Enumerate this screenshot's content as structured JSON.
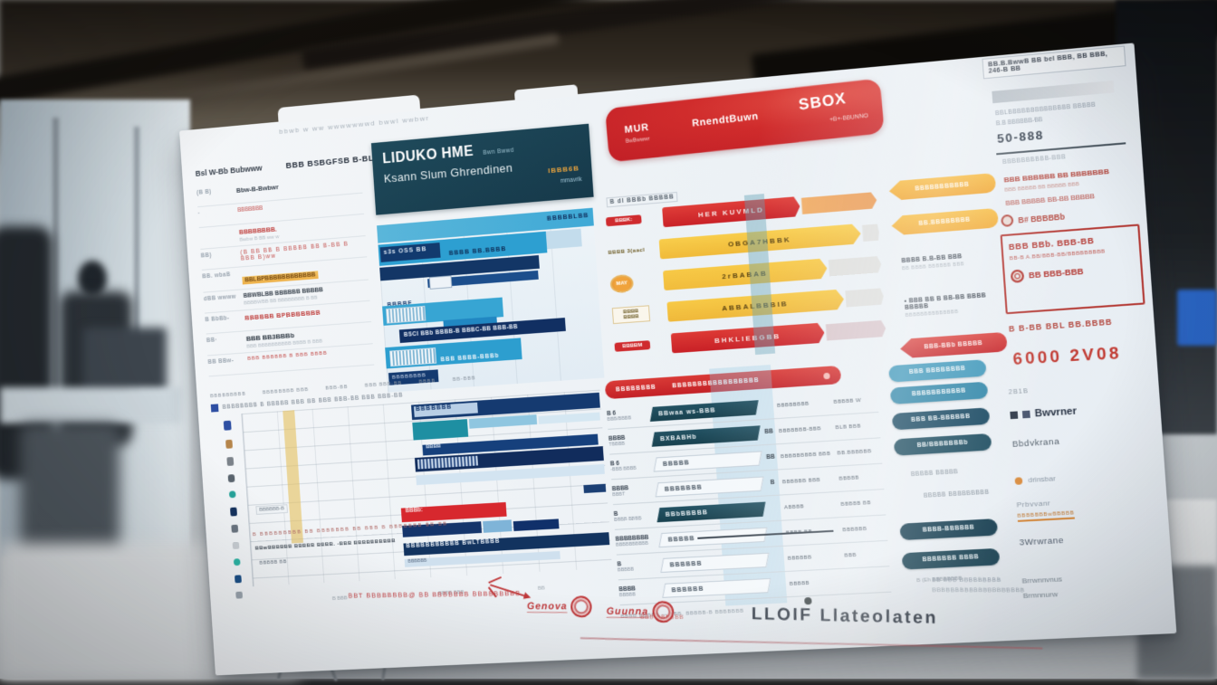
{
  "poster": {
    "top_note": "bbwb w ww wwwwwwwd bwwl wwbwr",
    "meta_left": "Bsl W-Bb  Bubwww",
    "meta_right": "BBB BSBGFSB B-BLMBM 4B-Br BBbGb",
    "header_box": {
      "title": "LIDUKO HME",
      "title_suffix": "Bwn Bwwd",
      "subtitle": "Ksann Slum Ghrendinen",
      "corner_tag": "IBBB6B",
      "corner_sub": "mmavrik",
      "bg_color": "#1c4152"
    },
    "banner": {
      "left_tag": "MUR",
      "left_sub": "BwBwwwr",
      "center": "RnendtBuwn",
      "right_big": "SBOX",
      "right_sub": "+B+-BBUNNO",
      "bg_color": "#cc2329"
    },
    "left_list": {
      "rows": [
        {
          "label": "(B B)",
          "text": "Bbw-B-Bwbwr",
          "sub": ""
        },
        {
          "label": "·",
          "text": "BBBBBBB",
          "sub": ""
        },
        {
          "label": "",
          "text": "BBBBBBBB.",
          "sub": "Bwbw B BB ww w"
        },
        {
          "label": "BB)",
          "text": "(B BB BB B BBBBB BB B-BB B BBB B)ww",
          "sub": ""
        },
        {
          "label": "BB. wbaB",
          "text": "BBLBPBBBBBBBBBBBB",
          "sub": ""
        },
        {
          "label": "dBB  wwww",
          "text": "BBWBLBB BBBBBB BBBBB",
          "sub": "BBBBWBB BB BBBBBBBB B BB"
        },
        {
          "label": "B BbBb-",
          "text": "BBBBBB BPBBBBBBB",
          "sub": ""
        },
        {
          "label": "BB·",
          "text": "BBB BB3BBBb",
          "sub": "BBB BBBBBBBBBB BBBB B BBB"
        },
        {
          "label": "BB BBw-",
          "text": "BBB BBBBBB B BBB BBBB",
          "sub": ""
        }
      ]
    },
    "blue_chart": {
      "bars": [
        {
          "n": "bar-top-strip",
          "s": "left:0;top:0;width:100%;height:20px;background:linear-gradient(90deg,#5ab6da,#3fa9d6);",
          "t": "BBBBBLBB",
          "ts": "position:absolute;right:5px;top:5px;font-size:7px;font-weight:bold;color:#10315f;letter-spacing:1px;"
        },
        {
          "n": "bar",
          "s": "left:0;top:22px;width:78%;height:24px;background:#2d9fd1;"
        },
        {
          "n": "bar-label-box",
          "s": "left:2px;top:25px;width:70px;height:17px;background:#123a6e;",
          "t": "s3s OSS BB",
          "ts": "font-size:7px;color:#d8e4f0;font-weight:bold;padding:3px 4px;letter-spacing:1px;display:block;"
        },
        {
          "n": "bar-label",
          "s": "left:82px;top:27px;width:100px;height:12px;",
          "t": "BBBB BB.BBBB",
          "ts": "font-size:7px;color:#0e2d57;font-weight:bold;letter-spacing:1px;"
        },
        {
          "n": "bar",
          "s": "left:78%;top:22px;width:16%;height:20px;background:#c3dcec;"
        },
        {
          "n": "bar",
          "s": "left:0;top:48px;width:74%;height:15px;background:#133666;"
        },
        {
          "n": "bar",
          "s": "left:55px;top:65px;width:128px;height:10px;background:#1c4e8c;"
        },
        {
          "n": "bar-marker",
          "s": "left:57px;top:63px;width:24px;height:12px;background:#eef3f8;border:1px solid #9db1c6;"
        },
        {
          "n": "bar-label",
          "s": "left:6px;top:80px;width:50px;height:10px;",
          "t": "BBBBF",
          "ts": "font-size:7px;font-weight:bold;color:#16396d;letter-spacing:1px;"
        },
        {
          "n": "bar",
          "s": "left:0;top:92px;width:56%;height:22px;background:#37a5d3;"
        },
        {
          "n": "bar-hatch",
          "s": "left:4px;top:95px;width:44px;height:15px;background:repeating-linear-gradient(90deg,#f2f7fa 0 2px,#87b9d6 2px 4px);border:1px solid #c2d6e4;"
        },
        {
          "n": "bar",
          "s": "left:70px;top:113px;width:62px;height:20px;background:#2187c2;"
        },
        {
          "n": "bar",
          "s": "left:18px;top:120px;width:192px;height:15px;background:#112f62;",
          "t": "BSCI BBb BBBB-B   BBBC-BB BBB-BB",
          "ts": "font-size:6.5px;color:#e8eef6;font-weight:bold;padding:3px 5px;white-space:nowrap;letter-spacing:.5px;display:block;"
        },
        {
          "n": "bar",
          "s": "left:0;top:139px;width:63%;height:24px;background:#2d9ecf;"
        },
        {
          "n": "bar-hatch",
          "s": "left:5px;top:143px;width:52px;height:16px;background:repeating-linear-gradient(90deg,#f4f8fb 0 2px,#7fb6d4 2px 4px);border:1px solid #cfe0ec;"
        },
        {
          "n": "bar-label",
          "s": "left:64px;top:146px;width:100px;height:12px;",
          "t": "BBB BBBB-BBBb",
          "ts": "font-size:6.5px;color:#f0f5fa;font-weight:bold;letter-spacing:1px;"
        },
        {
          "n": "bar-label-box",
          "s": "left:2px;top:168px;width:58px;height:14px;background:#143a70;",
          "t": "BBBBBBBB",
          "ts": "font-size:6px;color:#ccd8ea;padding:3px 4px;letter-spacing:1px;display:block;"
        }
      ]
    },
    "mid_chart": {
      "top_note": "B dl  BBBb BBBBB",
      "rows": [
        {
          "badge": "BBBK:",
          "text": "HER KUVMLD",
          "bar_style": "width:56%;background:linear-gradient(180deg,#df3d38,#c92127);color:#f7e3e2;",
          "ext_style": "width:30%;background:linear-gradient(90deg,#f0a04a,#e88a38);opacity:.85;"
        },
        {
          "badge": "BBBB 3(aacl",
          "text": "OBGA7HBBK",
          "bar_style": "width:88%;background:linear-gradient(180deg,#f8cd4b,#f0ba39);color:#5d4512;",
          "ext_style": "width:7%;background:rgba(210,205,198,.5);"
        },
        {
          "badge": "MAY",
          "text": "2rBABAB",
          "bar_style": "width:70%;background:linear-gradient(180deg,#f7c946,#f1bc3c);color:#5d4512;",
          "ext_style": "width:22%;background:rgba(210,205,198,.5);"
        },
        {
          "badge": "BBBB BBBB",
          "text": "ABBALBBBIB",
          "bar_style": "width:76%;background:linear-gradient(180deg,#f7c946,#efb83a);color:#5d4512;",
          "ext_style": "width:16%;background:rgba(210,205,198,.5);"
        },
        {
          "badge": "BBBBM",
          "text": "BHKLIEBGBB",
          "bar_style": "width:68%;background:linear-gradient(180deg,#dd3a35,#c82026);color:#f7e3e2;",
          "ext_style": "width:26%;background:rgba(200,160,165,.5);"
        }
      ]
    },
    "ribbons": {
      "items": [
        {
          "text": "BBBBBBBBBBB",
          "style": "top:0;background:linear-gradient(180deg,#f6b93f,#efa42f);color:#fdf6e8;"
        },
        {
          "text": "BB.BBBBBBBB",
          "style": "top:38px;background:linear-gradient(180deg,#f6bc42,#f0a934);color:#fdf6e8;"
        },
        {
          "text": "BBBB B.B-BB BBB",
          "sub": "BB BBBB BBBBBB BBB",
          "style": "top:84px;"
        },
        {
          "text": "• BBB BB B BB-BB BBBB BBBBB",
          "sub": "BBBBBBBBBBBBBB",
          "style": "top:128px;"
        },
        {
          "text": "BBB-BBb BBBBB",
          "style": "top:172px;background:linear-gradient(180deg,#da4440,#c5262b);color:#fbe9e8;"
        }
      ]
    },
    "right_panel": {
      "frame": "BB.B.BwwB BB bel BBB, BB BBB, 246-B BB",
      "l1": "BBLBBBBBBBBBBBBBB BBBBB",
      "l2": "B.B BBBBBB-BB",
      "big": "50-888",
      "sec": "BBBBBBBBBB-BBB",
      "i1": "BBB BBBBBB BB BBBBBBB",
      "i1sub": "BBB BBBBB BB BBBBB BBB",
      "i2": "BBB BBBBB BB-BB BBBBB",
      "radio": "B# BBBBBb",
      "box1": "BBB BBb. BBB-BB",
      "box2": "BB-B A.BB/BBB-BB/BBBBBBBBB",
      "box3": "BB BBB-BBB",
      "after": "B B-BB  BBL BB.BBBB",
      "bignum": "6000 2V08"
    },
    "col_heads": {
      "p1": "BBBBBBBBB",
      "p2": "BBBBBBBB BBB",
      "p3": "BBB-BB",
      "p4": "BBB BBB-BB",
      "p5": "BBBB",
      "p6": "BB-BBB"
    },
    "gantt": {
      "header": "BBBBBBBB B   BBBBB BBB BB BBB BBB-BB   BBB BBB-BB",
      "icons": [
        {
          "n": "row-icon",
          "s": "left:14px;top:20px;width:9px;height:11px;background:#2e4fa3;border-radius:2px;"
        },
        {
          "n": "row-icon",
          "s": "left:15px;top:42px;width:8px;height:10px;background:#b5854b;border-radius:2px;"
        },
        {
          "n": "row-icon",
          "s": "left:15px;top:62px;width:8px;height:10px;background:#7b828a;border-radius:2px;"
        },
        {
          "n": "row-icon",
          "s": "left:15px;top:82px;width:8px;height:9px;background:#5a646e;border-radius:3px;"
        },
        {
          "n": "row-icon",
          "s": "left:15px;top:101px;width:8px;height:8px;background:#27a39a;border-radius:50%;"
        },
        {
          "n": "row-icon",
          "s": "left:15px;top:120px;width:8px;height:10px;background:#16335f;border-radius:2px;"
        },
        {
          "n": "row-icon",
          "s": "left:15px;top:140px;width:8px;height:9px;background:#6b7580;border-radius:2px;"
        },
        {
          "n": "row-icon",
          "s": "left:15px;top:160px;width:8px;height:8px;background:#c9ced3;border-radius:2px;"
        },
        {
          "n": "row-icon",
          "s": "left:15px;top:179px;width:8px;height:8px;background:#2bb3a3;border-radius:50%;"
        },
        {
          "n": "row-icon",
          "s": "left:15px;top:198px;width:8px;height:9px;background:#1c4f86;border-radius:2px;"
        },
        {
          "n": "row-icon",
          "s": "left:15px;top:217px;width:8px;height:8px;background:#9aa4ad;border-radius:2px;"
        }
      ],
      "bars": [
        {
          "n": "gantt-bar",
          "s": "left:238px;top:16px;width:217px;height:17px;background:#153a70;"
        },
        {
          "n": "gantt-bar-label",
          "s": "left:241px;top:18px;width:74px;height:12px;background:#b9cfe6;",
          "t": "BBBBBBB",
          "ts": "font-size:7px;color:#12356b;font-weight:bold;letter-spacing:1px;display:block;padding-left:2px;"
        },
        {
          "n": "gantt-bar",
          "s": "left:238px;top:36px;width:64px;height:20px;background:#1e8fa2;"
        },
        {
          "n": "gantt-bar",
          "s": "left:304px;top:36px;width:78px;height:11px;background:#8fc6e0;"
        },
        {
          "n": "gantt-bar",
          "s": "left:384px;top:38px;width:70px;height:9px;background:#d5e7f2;"
        },
        {
          "n": "gantt-bar",
          "s": "left:248px;top:62px;width:202px;height:12px;background:#16407c;",
          "t": "BBBB",
          "ts": "font-size:6px;color:#d8e4f2;font-weight:bold;padding-left:4px;display:block;"
        },
        {
          "n": "gantt-bar",
          "s": "left:238px;top:76px;width:217px;height:16px;background:#112c5c;"
        },
        {
          "n": "gantt-bar-hatch",
          "s": "left:241px;top:78px;width:70px;height:11px;background:repeating-linear-gradient(90deg,#c8d8ea 0 2px,#35558a 2px 4px);"
        },
        {
          "n": "gantt-bar",
          "s": "left:238px;top:96px;width:217px;height:11px;background:#d3e4f1;"
        },
        {
          "n": "gantt-bar",
          "s": "left:430px;top:118px;width:25px;height:9px;background:#1b3f74;"
        },
        {
          "n": "gantt-bar",
          "s": "left:218px;top:132px;width:122px;height:16px;background:#d7282e;",
          "t": "BBBb:",
          "ts": "font-size:6.5px;color:#f6dada;font-weight:bold;padding-left:5px;display:block;"
        },
        {
          "n": "gantt-bar",
          "s": "left:218px;top:152px;width:92px;height:13px;background:#15356b;"
        },
        {
          "n": "gantt-bar",
          "s": "left:312px;top:152px;width:33px;height:13px;background:#7fb4d8;"
        },
        {
          "n": "gantt-bar",
          "s": "left:347px;top:154px;width:52px;height:11px;background:#10306a;"
        },
        {
          "n": "gantt-bar",
          "s": "left:218px;top:172px;width:237px;height:14px;background:#12335f;",
          "t": "BBBBBBBBBBB BwLTBBBB",
          "ts": "font-size:6.5px;color:#e6edf5;font-weight:bold;letter-spacing:1px;padding-left:3px;display:block;"
        },
        {
          "n": "gantt-bar",
          "s": "left:218px;top:190px;width:180px;height:9px;background:#cfe0ee;",
          "t": "BBBBBB",
          "ts": "font-size:5.5px;color:#5a6c85;padding-left:4px;display:block;"
        }
      ],
      "t1": "BBBBBB-B",
      "t2": "B BBBBBBBBB BB BBBBBBB BB BBB B BBBBBBB BB-BB",
      "t3": "BBwBBBBBB BBBBB  BBBB.  -BBB BBBBBBBBBB",
      "t4": "BBBBB BB",
      "ax1": "B BBB",
      "ax2": "BBBB BBB",
      "ax3": "BB"
    },
    "table": {
      "header": {
        "h1": "BBBBBBBB",
        "h2": "BBBBBBBBBBBBBBBBB"
      },
      "rows": [
        {
          "l1": "B 6",
          "l2": "BBB/BBBB",
          "bar": "BBwaa ws-BBB",
          "mid": "",
          "r1": "BBBBBBBB",
          "r2": "BBBBB W"
        },
        {
          "l1": "BBBB",
          "l2": "TBBBB",
          "bar": "BXBABHb",
          "mid": "BB",
          "r1": "BBBBBBB-BBB",
          "r2": "BLB BBB"
        },
        {
          "l1": "B 6",
          "l2": "-BBB BBBB",
          "bar": "BBBBB",
          "mid": "BB",
          "r1": "BBBBBBBBB BBB",
          "r2": "BB.BBBBBB"
        },
        {
          "l1": "BBBB",
          "l2": "BBBT",
          "bar": "BBBBBBB",
          "mid": "B",
          "r1": "BBBBBB BBB",
          "r2": "BBBBB"
        },
        {
          "l1": "B",
          "l2": "BBBB BBBB",
          "bar": "BBbBBBBB",
          "mid": "",
          "r1": "ABBBB",
          "r2": "BBBBB BB"
        },
        {
          "l1": "BBBBBBBB",
          "l2": "BBBBBBBBBB",
          "bar": "BBBBB",
          "mid": "",
          "r1": "BBBB-BB",
          "r2": "BBBBBB"
        },
        {
          "l1": "B",
          "l2": "BBBBB",
          "bar": "BBBBBB",
          "mid": "",
          "r1": "BBBBBB",
          "r2": "BBB"
        },
        {
          "l1": "BBBB",
          "l2": "BBBBB",
          "bar": "BBBBBB",
          "mid": "",
          "r1": "BBBBB",
          "r2": ""
        }
      ],
      "footnote": "BBBB BBBBB — BBB, BBBBB-B  BBBBBBB"
    },
    "pills": {
      "items": [
        {
          "text": "BBB BBBBBBBB",
          "style": "top:0;background:#3e97ba;"
        },
        {
          "text": "BBBBBBBBBBB",
          "style": "top:24px;background:#2e85a8;"
        },
        {
          "text": "BBB BB-BBBBBB",
          "style": "top:52px;background:#14455f;"
        },
        {
          "text": "BB/BBBBBBBb",
          "style": "top:80px;background:#1a4a5e;"
        },
        {
          "text": "BBBB-BBBBBB",
          "style": "top:172px;background:#173f52;"
        },
        {
          "text": "BBBBBBB BBBB",
          "style": "top:204px;background:#1c4556;"
        }
      ],
      "gray1": "BBBBB BBBBB",
      "gray2": "BBBBB BBBBBBBBB",
      "tiny": "B (Eh BBBBBBBB"
    },
    "right_col": {
      "year": "2B1B",
      "name": "Bwvrner",
      "name2": "Bbdvkrana",
      "orange_item": "drinsbar",
      "item4": "Prbvvanr",
      "orange_note": "BBBBBBBwBBBBB",
      "item5": "3Wrwrane",
      "item6": "Brrwnnvnus",
      "item7": "Brmnnurw"
    },
    "footer": {
      "annotation": "BBT BBBBBBBB@ BB  BBBBBBB BBBBBBBBB",
      "annotation2": "BBB BBBBBB",
      "stamp1": "Genova",
      "stamp2": "Guunna",
      "title": "LLOIF Llateolaten",
      "tiny1": "BB BBB BBBBBBBBB",
      "tiny2": "BBBBBBBBBBBBBBBBBBBB"
    }
  }
}
